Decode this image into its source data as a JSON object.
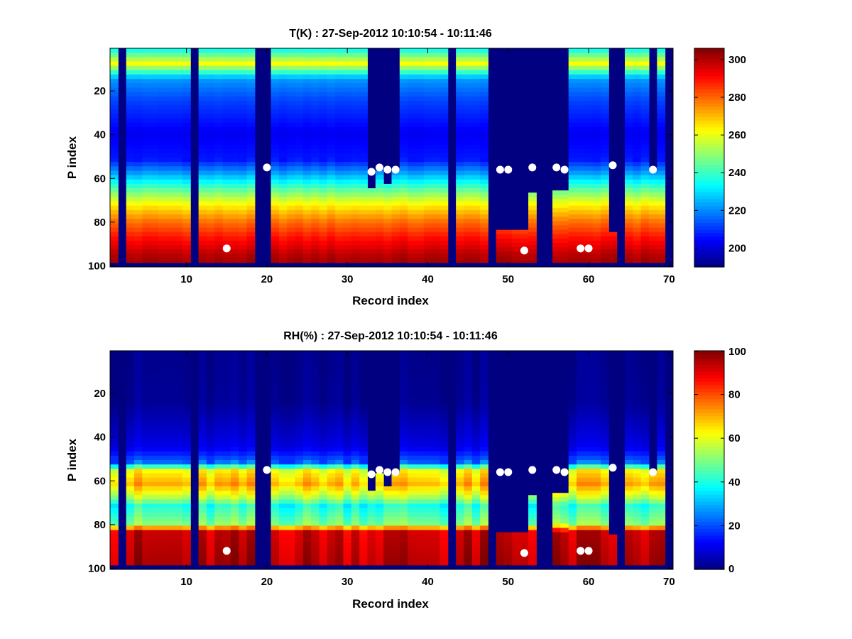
{
  "chart_data": [
    {
      "type": "heatmap",
      "title": "T(K) : 27-Sep-2012 10:10:54 - 10:11:46",
      "xlabel": "Record index",
      "ylabel": "P index",
      "xlim": [
        0.5,
        70.5
      ],
      "ylim": [
        100,
        1
      ],
      "y_reversed": true,
      "xticks": [
        10,
        20,
        30,
        40,
        50,
        60,
        70
      ],
      "yticks": [
        20,
        40,
        60,
        80,
        100
      ],
      "colormap": "jet",
      "clim": [
        190,
        306
      ],
      "colorbar_ticks": [
        200,
        220,
        240,
        260,
        280,
        300
      ],
      "record_count": 70,
      "p_levels": 100,
      "invalid_records": [
        2,
        11,
        19,
        20,
        43,
        48,
        54,
        55,
        64,
        70
      ],
      "profile_top_p": {
        "33": 65,
        "34": 57,
        "35": 63,
        "36": 57,
        "49": 84,
        "50": 84,
        "51": 84,
        "52": 84,
        "53": 67,
        "56": 66,
        "57": 66,
        "63": 85,
        "68": 57
      },
      "profile_bottom_p": 98,
      "profile_shape": [
        [
          0,
          228
        ],
        [
          8,
          262
        ],
        [
          15,
          222
        ],
        [
          25,
          212
        ],
        [
          40,
          203
        ],
        [
          52,
          207
        ],
        [
          58,
          222
        ],
        [
          65,
          242
        ],
        [
          72,
          262
        ],
        [
          80,
          278
        ],
        [
          88,
          290
        ],
        [
          96,
          300
        ],
        [
          100,
          302
        ]
      ],
      "markers": [
        {
          "record": 15,
          "p": 92
        },
        {
          "record": 20,
          "p": 55
        },
        {
          "record": 33,
          "p": 57
        },
        {
          "record": 34,
          "p": 55
        },
        {
          "record": 35,
          "p": 56
        },
        {
          "record": 36,
          "p": 56
        },
        {
          "record": 49,
          "p": 56
        },
        {
          "record": 50,
          "p": 56
        },
        {
          "record": 52,
          "p": 93
        },
        {
          "record": 53,
          "p": 55
        },
        {
          "record": 56,
          "p": 55
        },
        {
          "record": 57,
          "p": 56
        },
        {
          "record": 59,
          "p": 92
        },
        {
          "record": 60,
          "p": 92
        },
        {
          "record": 63,
          "p": 54
        },
        {
          "record": 68,
          "p": 56
        }
      ]
    },
    {
      "type": "heatmap",
      "title": "RH(%) : 27-Sep-2012 10:10:54 - 10:11:46",
      "xlabel": "Record index",
      "ylabel": "P index",
      "xlim": [
        0.5,
        70.5
      ],
      "ylim": [
        100,
        1
      ],
      "y_reversed": true,
      "xticks": [
        10,
        20,
        30,
        40,
        50,
        60,
        70
      ],
      "yticks": [
        20,
        40,
        60,
        80,
        100
      ],
      "colormap": "jet",
      "clim": [
        0,
        100
      ],
      "colorbar_ticks": [
        0,
        20,
        40,
        60,
        80,
        100
      ],
      "record_count": 70,
      "p_levels": 100,
      "invalid_records": [
        2,
        11,
        19,
        20,
        43,
        48,
        54,
        55,
        64,
        70
      ],
      "profile_top_p": {
        "33": 65,
        "34": 57,
        "35": 63,
        "36": 57,
        "49": 84,
        "50": 84,
        "51": 84,
        "52": 84,
        "53": 67,
        "56": 66,
        "57": 66,
        "63": 85,
        "68": 57
      },
      "profile_bottom_p": 98,
      "profile_shape": [
        [
          0,
          1
        ],
        [
          25,
          2
        ],
        [
          35,
          6
        ],
        [
          45,
          10
        ],
        [
          52,
          22
        ],
        [
          56,
          62
        ],
        [
          62,
          70
        ],
        [
          68,
          55
        ],
        [
          72,
          40
        ],
        [
          80,
          50
        ],
        [
          84,
          92
        ],
        [
          98,
          95
        ],
        [
          100,
          95
        ]
      ],
      "markers": [
        {
          "record": 15,
          "p": 92
        },
        {
          "record": 20,
          "p": 55
        },
        {
          "record": 33,
          "p": 57
        },
        {
          "record": 34,
          "p": 55
        },
        {
          "record": 35,
          "p": 56
        },
        {
          "record": 36,
          "p": 56
        },
        {
          "record": 49,
          "p": 56
        },
        {
          "record": 50,
          "p": 56
        },
        {
          "record": 52,
          "p": 93
        },
        {
          "record": 53,
          "p": 55
        },
        {
          "record": 56,
          "p": 55
        },
        {
          "record": 57,
          "p": 56
        },
        {
          "record": 59,
          "p": 92
        },
        {
          "record": 60,
          "p": 92
        },
        {
          "record": 63,
          "p": 54
        },
        {
          "record": 68,
          "p": 56
        }
      ]
    }
  ]
}
